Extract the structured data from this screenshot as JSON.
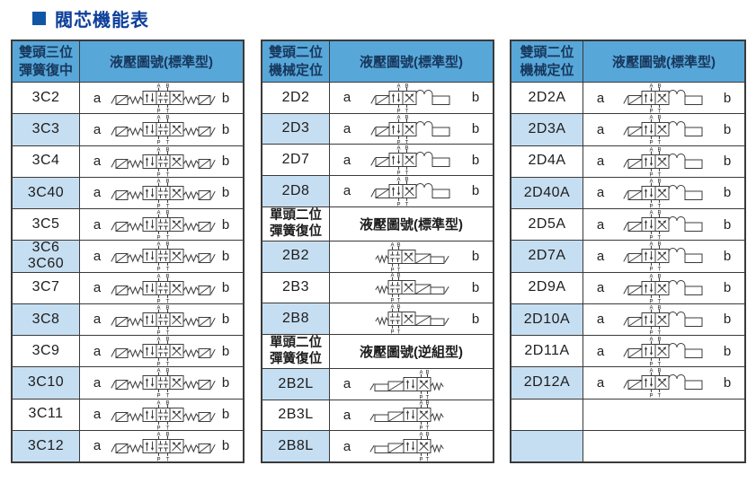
{
  "title": "閥芯機能表",
  "colors": {
    "header_bg": "#58a7d9",
    "row_alt_bg": "#c6def1",
    "header_text": "#17375c",
    "border": "#3a3a3a",
    "title_text": "#0d3f9a",
    "title_square": "#1156a5",
    "body_text": "#1d1d1d",
    "diagram_stroke": "#3c3c3c"
  },
  "diagram_ports": {
    "top": [
      "A",
      "B"
    ],
    "bottom": [
      "P",
      "T"
    ]
  },
  "tables": [
    {
      "name": "table-3c-series",
      "sections": [
        {
          "style": "primary",
          "header_left": "雙頭三位\n彈簧復中",
          "header_right": "液壓圖號(標準型)",
          "rows": [
            {
              "model": "3C2",
              "a": "a",
              "b": "b",
              "symbol": "valve-3c"
            },
            {
              "model": "3C3",
              "a": "a",
              "b": "b",
              "symbol": "valve-3c"
            },
            {
              "model": "3C4",
              "a": "a",
              "b": "b",
              "symbol": "valve-3c"
            },
            {
              "model": "3C40",
              "a": "a",
              "b": "b",
              "symbol": "valve-3c"
            },
            {
              "model": "3C5",
              "a": "a",
              "b": "b",
              "symbol": "valve-3c"
            },
            {
              "model": "3C6\n3C60",
              "a": "a",
              "b": "b",
              "symbol": "valve-3c"
            },
            {
              "model": "3C7",
              "a": "a",
              "b": "b",
              "symbol": "valve-3c"
            },
            {
              "model": "3C8",
              "a": "a",
              "b": "b",
              "symbol": "valve-3c"
            },
            {
              "model": "3C9",
              "a": "a",
              "b": "b",
              "symbol": "valve-3c"
            },
            {
              "model": "3C10",
              "a": "a",
              "b": "b",
              "symbol": "valve-3c"
            },
            {
              "model": "3C11",
              "a": "a",
              "b": "b",
              "symbol": "valve-3c"
            },
            {
              "model": "3C12",
              "a": "a",
              "b": "b",
              "symbol": "valve-3c"
            }
          ]
        }
      ]
    },
    {
      "name": "table-2d-2b-series",
      "sections": [
        {
          "style": "primary",
          "header_left": "雙頭二位\n機械定位",
          "header_right": "液壓圖號(標準型)",
          "rows": [
            {
              "model": "2D2",
              "a": "a",
              "b": "b",
              "symbol": "valve-2d"
            },
            {
              "model": "2D3",
              "a": "a",
              "b": "b",
              "symbol": "valve-2d"
            },
            {
              "model": "2D7",
              "a": "a",
              "b": "b",
              "symbol": "valve-2d"
            },
            {
              "model": "2D8",
              "a": "a",
              "b": "b",
              "symbol": "valve-2d"
            }
          ]
        },
        {
          "style": "plain",
          "header_left": "單頭二位\n彈簧復位",
          "header_right": "液壓圖號(標準型)",
          "rows": [
            {
              "model": "2B2",
              "a": "",
              "b": "b",
              "symbol": "valve-2b"
            },
            {
              "model": "2B3",
              "a": "",
              "b": "b",
              "symbol": "valve-2b"
            },
            {
              "model": "2B8",
              "a": "",
              "b": "b",
              "symbol": "valve-2b"
            }
          ]
        },
        {
          "style": "plain",
          "header_left": "單頭二位\n彈簧復位",
          "header_right": "液壓圖號(逆組型)",
          "rows": [
            {
              "model": "2B2L",
              "a": "a",
              "b": "",
              "symbol": "valve-2bl"
            },
            {
              "model": "2B3L",
              "a": "a",
              "b": "",
              "symbol": "valve-2bl"
            },
            {
              "model": "2B8L",
              "a": "a",
              "b": "",
              "symbol": "valve-2bl"
            }
          ]
        }
      ]
    },
    {
      "name": "table-2da-series",
      "sections": [
        {
          "style": "primary",
          "header_left": "雙頭二位\n機械定位",
          "header_right": "液壓圖號(標準型)",
          "rows": [
            {
              "model": "2D2A",
              "a": "a",
              "b": "b",
              "symbol": "valve-2d"
            },
            {
              "model": "2D3A",
              "a": "a",
              "b": "b",
              "symbol": "valve-2d"
            },
            {
              "model": "2D4A",
              "a": "a",
              "b": "b",
              "symbol": "valve-2d"
            },
            {
              "model": "2D40A",
              "a": "a",
              "b": "b",
              "symbol": "valve-2d"
            },
            {
              "model": "2D5A",
              "a": "a",
              "b": "b",
              "symbol": "valve-2d"
            },
            {
              "model": "2D7A",
              "a": "a",
              "b": "b",
              "symbol": "valve-2d"
            },
            {
              "model": "2D9A",
              "a": "a",
              "b": "b",
              "symbol": "valve-2d"
            },
            {
              "model": "2D10A",
              "a": "a",
              "b": "b",
              "symbol": "valve-2d"
            },
            {
              "model": "2D11A",
              "a": "a",
              "b": "b",
              "symbol": "valve-2d"
            },
            {
              "model": "2D12A",
              "a": "a",
              "b": "b",
              "symbol": "valve-2d"
            },
            {
              "model": "",
              "a": "",
              "b": "",
              "symbol": ""
            },
            {
              "model": "",
              "a": "",
              "b": "",
              "symbol": ""
            }
          ]
        }
      ]
    }
  ]
}
